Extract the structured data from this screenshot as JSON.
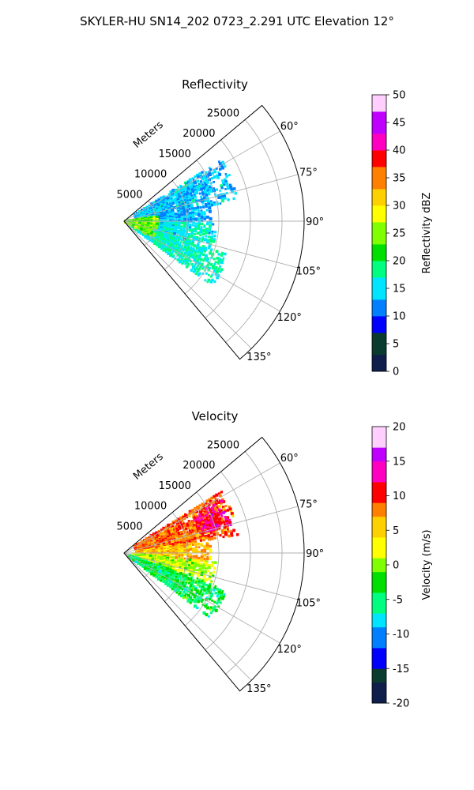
{
  "figure_title": "SKYLER-HU  SN14_202  0723_2.291 UTC Elevation 12°",
  "chart_data": [
    {
      "type": "heatmap",
      "title": "Reflectivity",
      "range_label": "Meters",
      "range_ticks": [
        5000,
        10000,
        15000,
        20000,
        25000
      ],
      "range_max": 28500,
      "azimuth_range_deg": [
        50,
        140
      ],
      "azimuth_ticks": [
        60,
        75,
        90,
        105,
        120,
        135
      ],
      "azimuth_tick_labels": [
        "60°",
        "75°",
        "90°",
        "105°",
        "120°",
        "135°"
      ],
      "grid": true,
      "colorbar": {
        "label": "Reflectivity dBZ",
        "vmin": 0,
        "vmax": 50,
        "ticks": [
          0,
          5,
          10,
          15,
          20,
          25,
          30,
          35,
          40,
          45,
          50
        ],
        "levels": 50,
        "colors": [
          "#0f1e4a",
          "#0b3a2e",
          "#0000ff",
          "#0080ff",
          "#00e5ff",
          "#00ff80",
          "#00e000",
          "#7fff00",
          "#ffff00",
          "#ffd000",
          "#ff8000",
          "#ff0000",
          "#ff00c0",
          "#c000ff",
          "#ffd0ff"
        ]
      },
      "sectors": [
        {
          "az": [
            58,
            80
          ],
          "r": [
            2000,
            18500
          ],
          "value": 14
        },
        {
          "az": [
            80,
            92
          ],
          "r": [
            2000,
            14000
          ],
          "value": 13
        },
        {
          "az": [
            92,
            108
          ],
          "r": [
            1500,
            15000
          ],
          "value": 16
        },
        {
          "az": [
            108,
            127
          ],
          "r": [
            1500,
            17500
          ],
          "value": 17
        },
        {
          "az": [
            82,
            120
          ],
          "r": [
            300,
            5500
          ],
          "value": 24
        }
      ]
    },
    {
      "type": "heatmap",
      "title": "Velocity",
      "range_label": "Meters",
      "range_ticks": [
        5000,
        10000,
        15000,
        20000,
        25000
      ],
      "range_max": 28500,
      "azimuth_range_deg": [
        50,
        140
      ],
      "azimuth_ticks": [
        60,
        75,
        90,
        105,
        120,
        135
      ],
      "azimuth_tick_labels": [
        "60°",
        "75°",
        "90°",
        "105°",
        "120°",
        "135°"
      ],
      "grid": true,
      "colorbar": {
        "label": "Velocity (m/s)",
        "vmin": -20,
        "vmax": 20,
        "ticks": [
          -20,
          -15,
          -10,
          -5,
          0,
          5,
          10,
          15,
          20
        ],
        "levels": 40,
        "colors": [
          "#0f1e4a",
          "#0b3a2e",
          "#0000ff",
          "#0080ff",
          "#00e5ff",
          "#00ff80",
          "#00e000",
          "#7fff00",
          "#ffff00",
          "#ffd000",
          "#ff8000",
          "#ff0000",
          "#ff00c0",
          "#c000ff",
          "#ffd0ff"
        ]
      },
      "sectors": [
        {
          "az": [
            58,
            82
          ],
          "r": [
            2000,
            18500
          ],
          "value": 9
        },
        {
          "az": [
            62,
            76
          ],
          "r": [
            12500,
            17500
          ],
          "value": 12
        },
        {
          "az": [
            82,
            96
          ],
          "r": [
            2000,
            14000
          ],
          "value": 6
        },
        {
          "az": [
            96,
            110
          ],
          "r": [
            1500,
            15000
          ],
          "value": 1
        },
        {
          "az": [
            110,
            127
          ],
          "r": [
            1000,
            17500
          ],
          "value": -4
        }
      ]
    }
  ]
}
